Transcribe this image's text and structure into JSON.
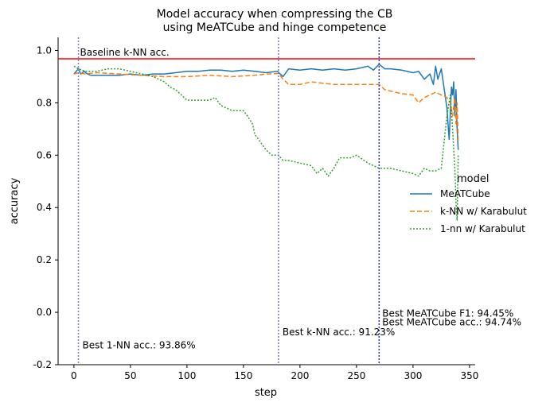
{
  "chart_data": {
    "type": "line",
    "title_line1": "Model accuracy when compressing the CB",
    "title_line2": "using MeATCube and hinge competence",
    "xlabel": "step",
    "ylabel": "accuracy",
    "xlim": [
      -14,
      355
    ],
    "ylim": [
      -0.2,
      1.05
    ],
    "xticks": [
      0,
      50,
      100,
      150,
      200,
      250,
      300,
      350
    ],
    "yticks": [
      -0.2,
      0.0,
      0.2,
      0.4,
      0.6,
      0.8,
      1.0
    ],
    "legend_title": "model",
    "legend_position": "center-right",
    "baseline": {
      "value": 0.968,
      "label": "Baseline k-NN acc.",
      "color": "#ff0000"
    },
    "vlines": [
      {
        "x": 4,
        "label": "Best 1-NN acc.: 93.86%"
      },
      {
        "x": 181,
        "label": "Best k-NN acc.: 91.23%"
      },
      {
        "x": 270,
        "label": "Best MeATCube F1: 94.45%"
      },
      {
        "x": 270,
        "label": "Best MeATCube acc.: 94.74%"
      }
    ],
    "series": [
      {
        "name": "MeATCube",
        "color": "#1f77b4",
        "dash": "",
        "x": [
          0,
          4,
          6,
          9,
          12,
          15,
          20,
          25,
          30,
          35,
          40,
          50,
          60,
          70,
          80,
          90,
          100,
          110,
          120,
          130,
          140,
          150,
          160,
          170,
          180,
          185,
          190,
          200,
          210,
          220,
          230,
          240,
          250,
          260,
          265,
          270,
          275,
          280,
          290,
          300,
          305,
          310,
          315,
          318,
          320,
          322,
          325,
          328,
          330,
          332,
          334,
          335,
          336,
          337,
          338,
          339,
          340
        ],
        "y": [
          0.91,
          0.93,
          0.91,
          0.92,
          0.91,
          0.905,
          0.905,
          0.905,
          0.905,
          0.905,
          0.905,
          0.91,
          0.905,
          0.91,
          0.91,
          0.915,
          0.92,
          0.92,
          0.925,
          0.925,
          0.92,
          0.925,
          0.92,
          0.915,
          0.92,
          0.9,
          0.93,
          0.925,
          0.93,
          0.925,
          0.93,
          0.925,
          0.93,
          0.94,
          0.925,
          0.947,
          0.93,
          0.93,
          0.925,
          0.915,
          0.92,
          0.89,
          0.91,
          0.87,
          0.94,
          0.89,
          0.93,
          0.84,
          0.78,
          0.66,
          0.86,
          0.83,
          0.88,
          0.75,
          0.85,
          0.7,
          0.62
        ]
      },
      {
        "name": "k-NN w/ Karabulut",
        "color": "#ff7f0e",
        "dash": "6,3",
        "x": [
          0,
          4,
          10,
          20,
          40,
          60,
          80,
          100,
          120,
          140,
          160,
          170,
          181,
          185,
          190,
          200,
          210,
          220,
          230,
          240,
          250,
          260,
          270,
          275,
          280,
          290,
          300,
          305,
          310,
          315,
          320,
          325,
          330,
          333,
          335,
          337,
          338,
          339,
          340
        ],
        "y": [
          0.91,
          0.915,
          0.91,
          0.915,
          0.91,
          0.905,
          0.9,
          0.9,
          0.905,
          0.9,
          0.905,
          0.91,
          0.912,
          0.89,
          0.87,
          0.87,
          0.88,
          0.875,
          0.87,
          0.87,
          0.87,
          0.87,
          0.87,
          0.85,
          0.845,
          0.835,
          0.83,
          0.8,
          0.82,
          0.83,
          0.84,
          0.83,
          0.82,
          0.8,
          0.75,
          0.82,
          0.72,
          0.8,
          0.65
        ]
      },
      {
        "name": "1-nn w/ Karabulut",
        "color": "#2ca02c",
        "dash": "2,2",
        "x": [
          0,
          4,
          10,
          20,
          30,
          40,
          50,
          60,
          70,
          75,
          80,
          85,
          90,
          95,
          100,
          110,
          120,
          125,
          130,
          140,
          150,
          155,
          158,
          160,
          165,
          170,
          175,
          181,
          185,
          190,
          200,
          210,
          215,
          220,
          225,
          230,
          235,
          240,
          245,
          250,
          260,
          270,
          275,
          280,
          290,
          300,
          305,
          310,
          315,
          320,
          325,
          330,
          333,
          335,
          337,
          338,
          339,
          340
        ],
        "y": [
          0.94,
          0.93,
          0.92,
          0.92,
          0.93,
          0.93,
          0.92,
          0.91,
          0.9,
          0.89,
          0.88,
          0.86,
          0.85,
          0.83,
          0.81,
          0.81,
          0.81,
          0.82,
          0.79,
          0.77,
          0.77,
          0.74,
          0.72,
          0.68,
          0.65,
          0.62,
          0.6,
          0.6,
          0.58,
          0.58,
          0.57,
          0.56,
          0.53,
          0.55,
          0.52,
          0.55,
          0.59,
          0.59,
          0.59,
          0.6,
          0.57,
          0.55,
          0.55,
          0.55,
          0.54,
          0.53,
          0.52,
          0.55,
          0.54,
          0.54,
          0.55,
          0.75,
          0.83,
          0.7,
          0.55,
          0.42,
          0.35,
          0.6
        ]
      }
    ]
  }
}
